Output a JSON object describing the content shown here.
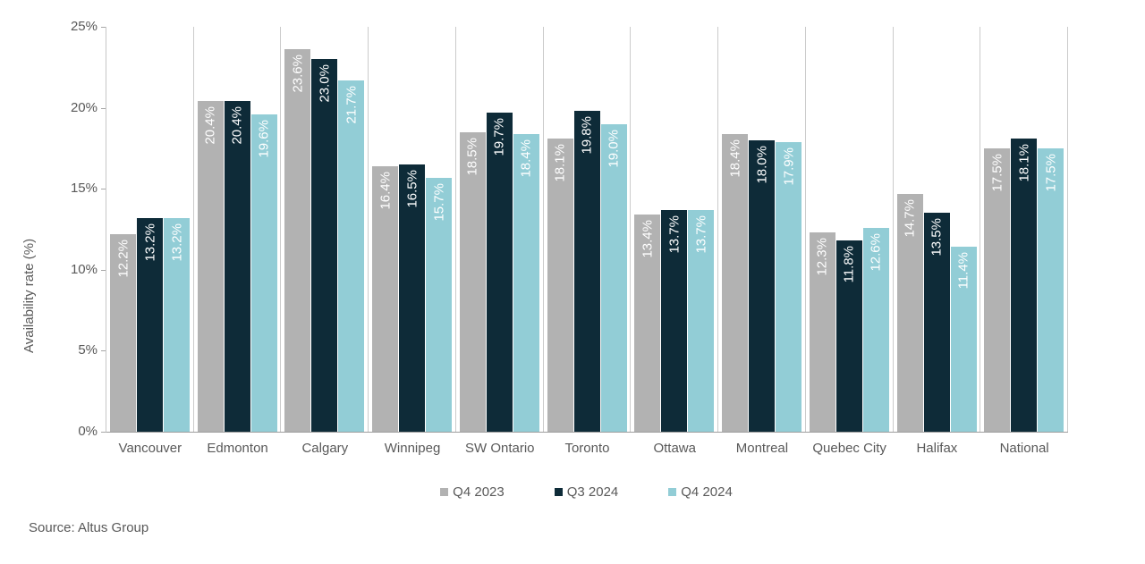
{
  "chart_data": {
    "type": "bar",
    "title": "",
    "xlabel": "",
    "ylabel": "Availability rate (%)",
    "ylim": [
      0,
      25
    ],
    "grid": "vertical category separators only, no horizontal gridlines",
    "legend_position": "bottom",
    "bar_label_style": "white, rotated bottom-to-top, inside bar near top",
    "yticks": [
      {
        "value": 0,
        "label": "0%"
      },
      {
        "value": 5,
        "label": "5%"
      },
      {
        "value": 10,
        "label": "10%"
      },
      {
        "value": 15,
        "label": "15%"
      },
      {
        "value": 20,
        "label": "20%"
      },
      {
        "value": 25,
        "label": "25%"
      }
    ],
    "categories": [
      "Vancouver",
      "Edmonton",
      "Calgary",
      "Winnipeg",
      "SW Ontario",
      "Toronto",
      "Ottawa",
      "Montreal",
      "Quebec City",
      "Halifax",
      "National"
    ],
    "series": [
      {
        "name": "Q4 2023",
        "color": "#b2b2b2",
        "values": [
          12.2,
          20.4,
          23.6,
          16.4,
          18.5,
          18.1,
          13.4,
          18.4,
          12.3,
          14.7,
          17.5
        ],
        "labels": [
          "12.2%",
          "20.4%",
          "23.6%",
          "16.4%",
          "18.5%",
          "18.1%",
          "13.4%",
          "18.4%",
          "12.3%",
          "14.7%",
          "17.5%"
        ]
      },
      {
        "name": "Q3 2024",
        "color": "#0e2b38",
        "values": [
          13.2,
          20.4,
          23.0,
          16.5,
          19.7,
          19.8,
          13.7,
          18.0,
          11.8,
          13.5,
          18.1
        ],
        "labels": [
          "13.2%",
          "20.4%",
          "23.0%",
          "16.5%",
          "19.7%",
          "19.8%",
          "13.7%",
          "18.0%",
          "11.8%",
          "13.5%",
          "18.1%"
        ]
      },
      {
        "name": "Q4 2024",
        "color": "#92cdd6",
        "values": [
          13.2,
          19.6,
          21.7,
          15.7,
          18.4,
          19.0,
          13.7,
          17.9,
          12.6,
          11.4,
          17.5
        ],
        "labels": [
          "13.2%",
          "19.6%",
          "21.7%",
          "15.7%",
          "18.4%",
          "19.0%",
          "13.7%",
          "17.9%",
          "12.6%",
          "11.4%",
          "17.5%"
        ]
      }
    ]
  },
  "footer": {
    "source": "Source: Altus Group"
  },
  "colors": {
    "background": "#ffffff",
    "series_q4_2023": "#b2b2b2",
    "series_q3_2024": "#0e2b38",
    "series_q4_2024": "#92cdd6",
    "axis_text": "#595959",
    "axis_line": "#9d9d9d",
    "separator_line": "#cbcbcb",
    "bar_label_text": "#ffffff"
  }
}
